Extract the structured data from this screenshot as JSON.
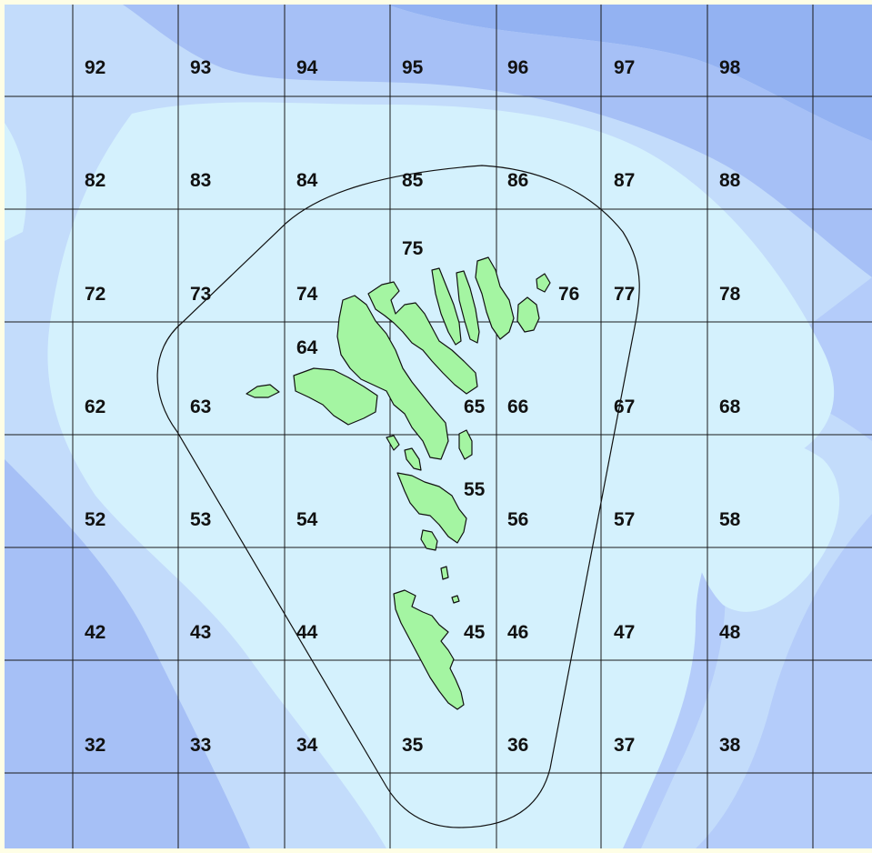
{
  "map": {
    "colors": {
      "frame": "#fefee6",
      "shallow": "#d4f1fd",
      "mid": "#c3dcfb",
      "mid2": "#b4ccfa",
      "deep": "#a6c0f6",
      "deepest": "#93b2f2",
      "land": "#a4f5a2",
      "grid_line": "#1a1a1a"
    },
    "grid_labels": [
      {
        "id": "92",
        "text": "92"
      },
      {
        "id": "93",
        "text": "93"
      },
      {
        "id": "94",
        "text": "94"
      },
      {
        "id": "95",
        "text": "95"
      },
      {
        "id": "96",
        "text": "96"
      },
      {
        "id": "97",
        "text": "97"
      },
      {
        "id": "98",
        "text": "98"
      },
      {
        "id": "82",
        "text": "82"
      },
      {
        "id": "83",
        "text": "83"
      },
      {
        "id": "84",
        "text": "84"
      },
      {
        "id": "85",
        "text": "85"
      },
      {
        "id": "86",
        "text": "86"
      },
      {
        "id": "87",
        "text": "87"
      },
      {
        "id": "88",
        "text": "88"
      },
      {
        "id": "75",
        "text": "75"
      },
      {
        "id": "72",
        "text": "72"
      },
      {
        "id": "73",
        "text": "73"
      },
      {
        "id": "74",
        "text": "74"
      },
      {
        "id": "76",
        "text": "76"
      },
      {
        "id": "77",
        "text": "77"
      },
      {
        "id": "78",
        "text": "78"
      },
      {
        "id": "64",
        "text": "64"
      },
      {
        "id": "62",
        "text": "62"
      },
      {
        "id": "63",
        "text": "63"
      },
      {
        "id": "65",
        "text": "65"
      },
      {
        "id": "66",
        "text": "66"
      },
      {
        "id": "67",
        "text": "67"
      },
      {
        "id": "68",
        "text": "68"
      },
      {
        "id": "55",
        "text": "55"
      },
      {
        "id": "52",
        "text": "52"
      },
      {
        "id": "53",
        "text": "53"
      },
      {
        "id": "54",
        "text": "54"
      },
      {
        "id": "56",
        "text": "56"
      },
      {
        "id": "57",
        "text": "57"
      },
      {
        "id": "58",
        "text": "58"
      },
      {
        "id": "42",
        "text": "42"
      },
      {
        "id": "43",
        "text": "43"
      },
      {
        "id": "44",
        "text": "44"
      },
      {
        "id": "45",
        "text": "45"
      },
      {
        "id": "46",
        "text": "46"
      },
      {
        "id": "47",
        "text": "47"
      },
      {
        "id": "48",
        "text": "48"
      },
      {
        "id": "32",
        "text": "32"
      },
      {
        "id": "33",
        "text": "33"
      },
      {
        "id": "34",
        "text": "34"
      },
      {
        "id": "35",
        "text": "35"
      },
      {
        "id": "36",
        "text": "36"
      },
      {
        "id": "37",
        "text": "37"
      },
      {
        "id": "38",
        "text": "38"
      }
    ]
  }
}
